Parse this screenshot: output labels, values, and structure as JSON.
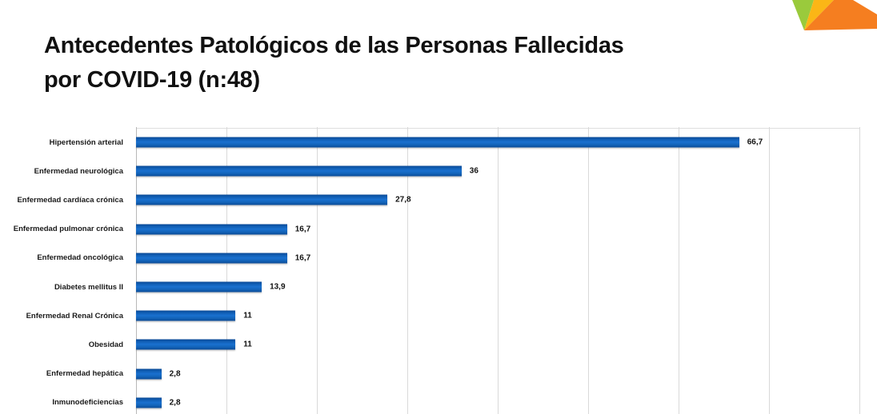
{
  "title": {
    "line1": "Antecedentes Patológicos de las Personas Fallecidas",
    "line2": "por COVID-19 (n:48)"
  },
  "chart_data": {
    "type": "bar",
    "orientation": "horizontal",
    "title": "Antecedentes Patológicos de las Personas Fallecidas por COVID-19 (n:48)",
    "sample_size_label": "n:48",
    "categories": [
      "Hipertensión arterial",
      "Enfermedad neurológica",
      "Enfermedad cardíaca crónica",
      "Enfermedad pulmonar crónica",
      "Enfermedad oncológica",
      "Diabetes mellitus II",
      "Enfermedad Renal Crónica",
      "Obesidad",
      "Enfermedad hepática",
      "Inmunodeficiencias"
    ],
    "values": [
      66.7,
      36,
      27.8,
      16.7,
      16.7,
      13.9,
      11,
      11,
      2.8,
      2.8
    ],
    "value_labels": [
      "66,7",
      "36",
      "27,8",
      "16,7",
      "16,7",
      "13,9",
      "11",
      "11",
      "2,8",
      "2,8"
    ],
    "xlim": [
      0,
      80
    ],
    "gridline_interval": 10,
    "grid": "vertical-only",
    "legend": "none",
    "bar_color": "#1263b8",
    "gridline_color": "#d9d9d9",
    "axis_line_color": "#b8b8b8",
    "value_label_position": "outside-end"
  },
  "logo": {
    "green": "#9aca3c",
    "yellow": "#fbb616",
    "orange": "#f57e20"
  }
}
